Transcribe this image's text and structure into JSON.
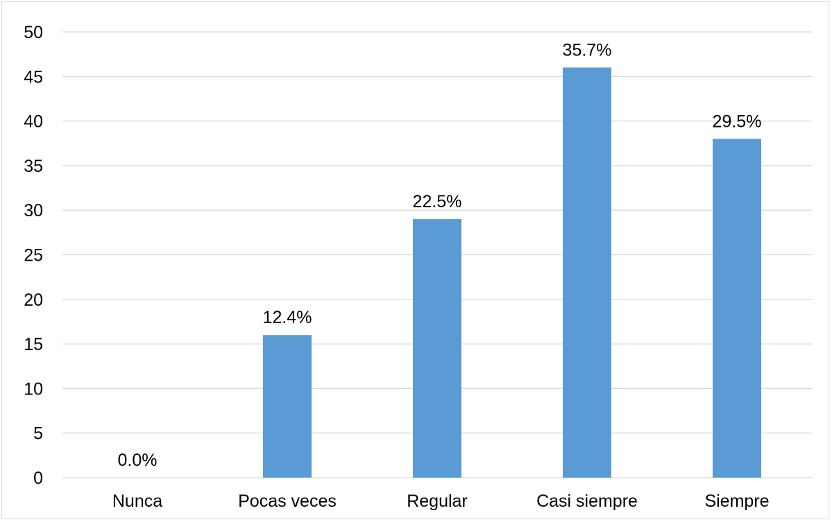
{
  "chart_data": {
    "type": "bar",
    "title": "",
    "xlabel": "",
    "ylabel": "",
    "categories": [
      "Nunca",
      "Pocas veces",
      "Regular",
      "Casi siempre",
      "Siempre"
    ],
    "values": [
      0,
      16,
      29,
      46,
      38
    ],
    "data_labels": [
      "0.0%",
      "12.4%",
      "22.5%",
      "35.7%",
      "29.5%"
    ],
    "ylim": [
      0,
      50
    ],
    "yticks": [
      "0",
      "5",
      "10",
      "15",
      "20",
      "25",
      "30",
      "35",
      "40",
      "45",
      "50"
    ],
    "ytick_values": [
      0,
      5,
      10,
      15,
      20,
      25,
      30,
      35,
      40,
      45,
      50
    ],
    "grid": true,
    "legend": "none",
    "bar_color": "#5b9bd5"
  }
}
